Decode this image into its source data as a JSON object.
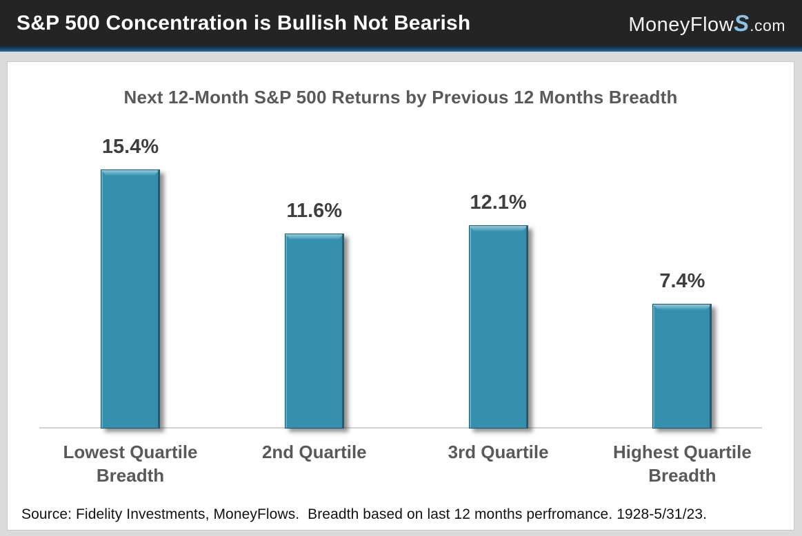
{
  "header": {
    "title": "S&P 500 Concentration is Bullish Not Bearish",
    "logo": {
      "prefix": "MoneyFlow",
      "s": "S",
      "suffix": ".com"
    }
  },
  "chart_data": {
    "type": "bar",
    "title": "Next 12-Month S&P 500 Returns by Previous 12 Months Breadth",
    "categories": [
      "Lowest Quartile Breadth",
      "2nd Quartile",
      "3rd Quartile",
      "Highest Quartile Breadth"
    ],
    "values": [
      15.4,
      11.6,
      12.1,
      7.4
    ],
    "value_labels": [
      "15.4%",
      "11.6%",
      "12.1%",
      "7.4%"
    ],
    "unit": "%",
    "xlabel": "",
    "ylabel": "",
    "ylim": [
      0,
      17
    ],
    "grid": false,
    "legend": false,
    "bar_color": "#3590ae",
    "title_color": "#595959",
    "label_color": "#3e3e3e"
  },
  "footer": {
    "source": "Source: Fidelity Investments, MoneyFlows.  Breadth based on last 12 months perfromance. 1928-5/31/23."
  },
  "colors": {
    "header_bg": "#242424",
    "divider_blue": "#1d4a70",
    "page_bg": "#dbdbdb",
    "axis_gray": "#d2d2d2",
    "logo_s_blue": "#8fc2e2"
  }
}
